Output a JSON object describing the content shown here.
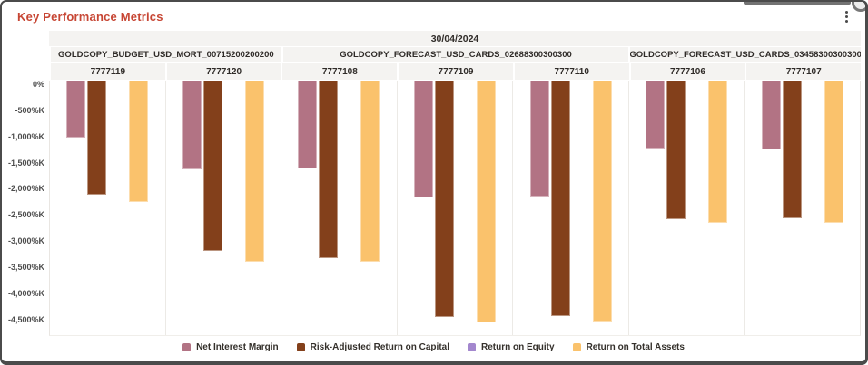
{
  "window": {
    "title": "Key Performance Metrics",
    "menu_icon": "kebab-menu-icon"
  },
  "colors": {
    "title_accent": "#c74634",
    "header_bg": "#f4f3f1",
    "header_text": "#2f2b28",
    "axis_text": "#4d4d4d",
    "frame_border": "#4b4b4b"
  },
  "chart_data": {
    "type": "bar",
    "title": "Key Performance Metrics",
    "date_header": "30/04/2024",
    "unit": "%K",
    "grid": false,
    "legend_position": "bottom",
    "y_ticks": [
      "0%",
      "-500%K",
      "-1,000%K",
      "-1,500%K",
      "-2,000%K",
      "-2,500%K",
      "-3,000%K",
      "-3,500%K",
      "-4,000%K",
      "-4,500%K"
    ],
    "y_tick_step": 500,
    "y_axis_range": [
      0,
      -4870
    ],
    "groups": [
      {
        "label": "GOLDCOPY_BUDGET_USD_MORT_00715200200200",
        "columns": [
          "7777119",
          "7777120"
        ]
      },
      {
        "label": "GOLDCOPY_FORECAST_USD_CARDS_02688300300300",
        "columns": [
          "7777108",
          "7777109",
          "7777110"
        ]
      },
      {
        "label": "GOLDCOPY_FORECAST_USD_CARDS_03458300300300",
        "columns": [
          "7777106",
          "7777107"
        ]
      }
    ],
    "categories": [
      "7777119",
      "7777120",
      "7777108",
      "7777109",
      "7777110",
      "7777106",
      "7777107"
    ],
    "series": [
      {
        "name": "Net Interest Margin",
        "color": "#b27384",
        "values": [
          -1090,
          -1690,
          -1680,
          -2240,
          -2220,
          -1300,
          -1320
        ]
      },
      {
        "name": "Risk-Adjusted Return on Capital",
        "color": "#83401b",
        "values": [
          -2180,
          -3260,
          -3390,
          -4520,
          -4500,
          -2650,
          -2630
        ]
      },
      {
        "name": "Return on Equity",
        "color": "#a387ce",
        "values": [
          0,
          0,
          0,
          0,
          0,
          0,
          0
        ]
      },
      {
        "name": "Return on Total Assets",
        "color": "#fac26c",
        "values": [
          -2320,
          -3460,
          -3470,
          -4620,
          -4610,
          -2720,
          -2720
        ]
      }
    ]
  }
}
